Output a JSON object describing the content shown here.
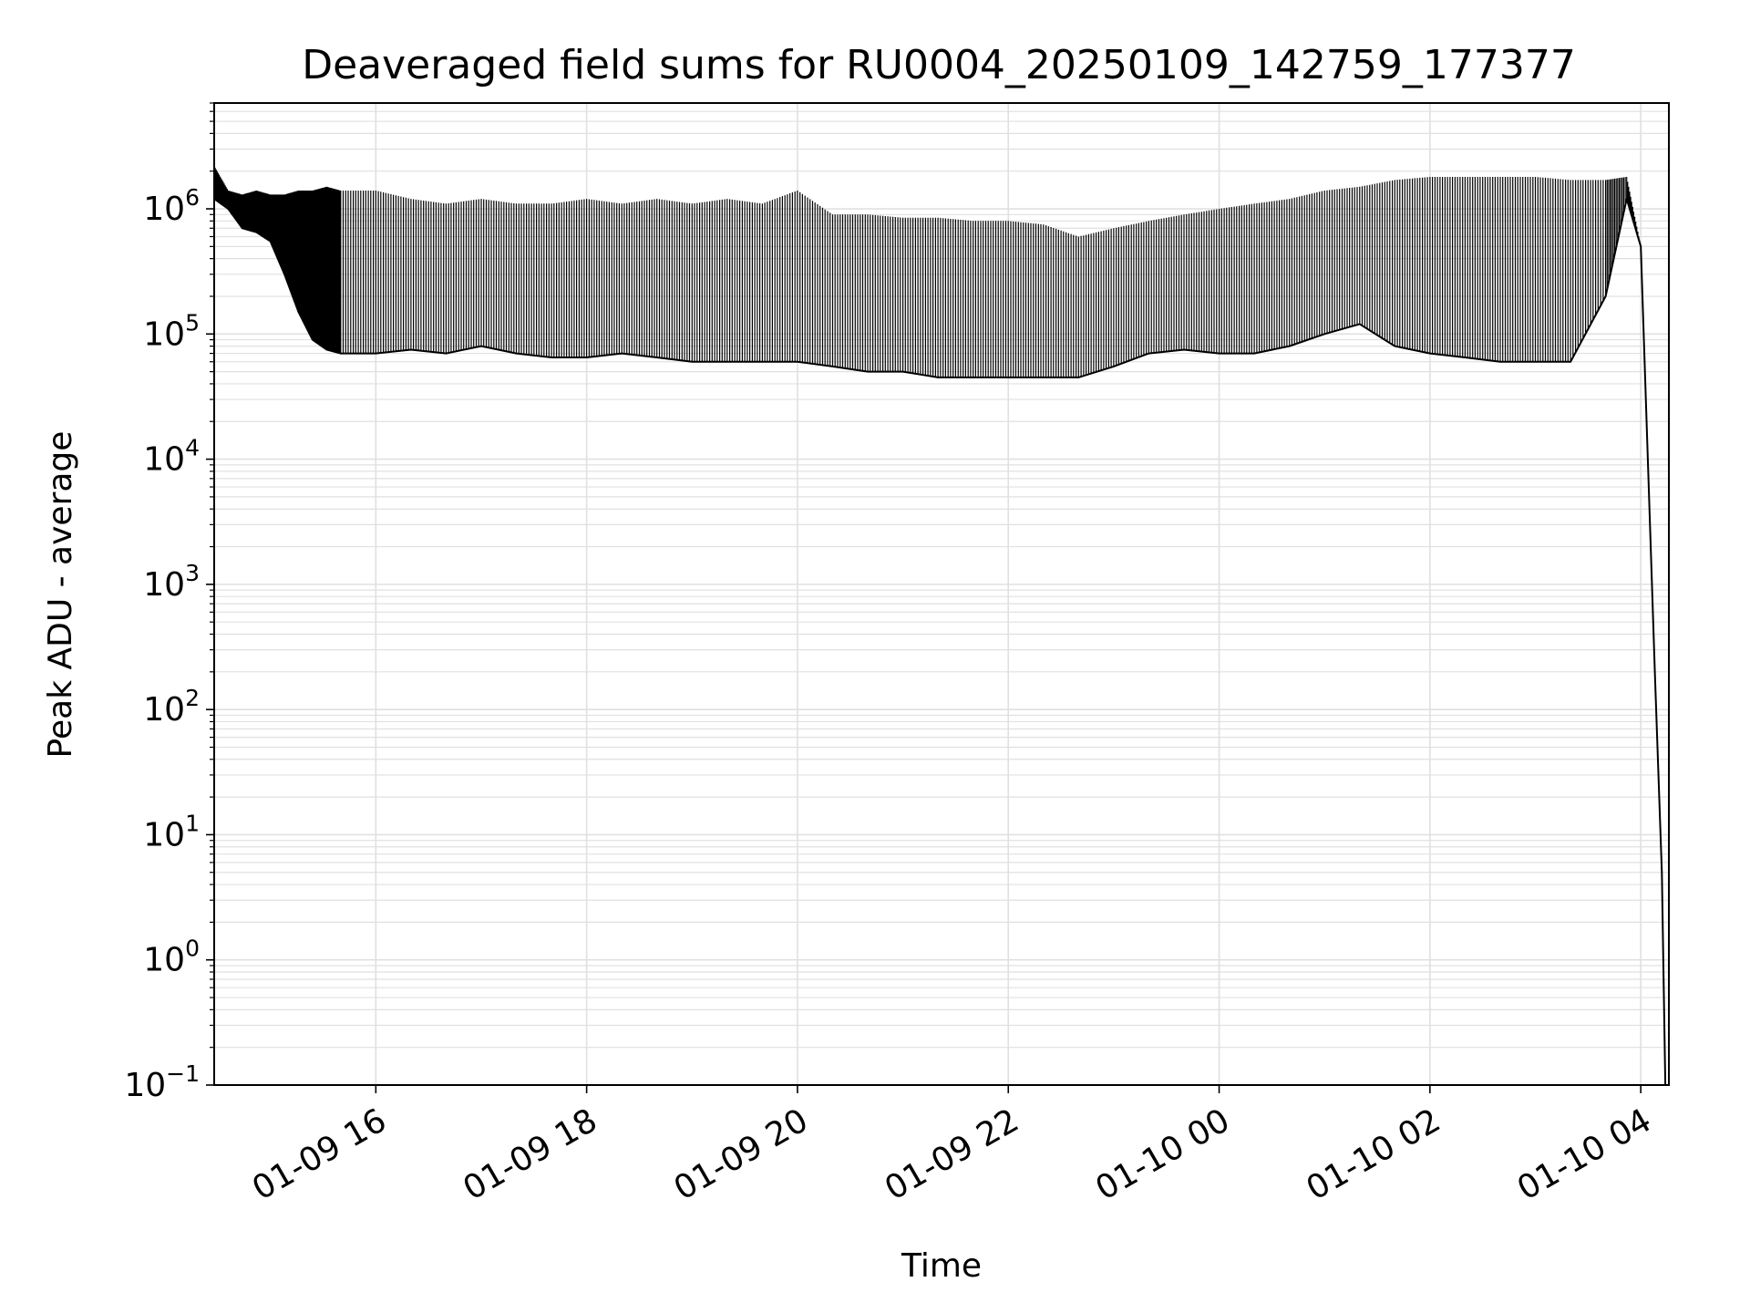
{
  "chart_data": {
    "type": "line",
    "title": "Deaveraged field sums for RU0004_20250109_142759_177377",
    "xlabel": "Time",
    "ylabel": "Peak ADU - average",
    "yscale": "log",
    "ylim": [
      0.1,
      7000000
    ],
    "xlim": [
      "2025-01-09 14:28",
      "2025-01-10 04:16"
    ],
    "grid": true,
    "legend": "none",
    "line_color": "#000000",
    "grid_color": "#e0e0e0",
    "x_ticks": [
      {
        "value": "2025-01-09 16:00",
        "label": "01-09 16"
      },
      {
        "value": "2025-01-09 18:00",
        "label": "01-09 18"
      },
      {
        "value": "2025-01-09 20:00",
        "label": "01-09 20"
      },
      {
        "value": "2025-01-09 22:00",
        "label": "01-09 22"
      },
      {
        "value": "2025-01-10 00:00",
        "label": "01-10 00"
      },
      {
        "value": "2025-01-10 02:00",
        "label": "01-10 02"
      },
      {
        "value": "2025-01-10 04:00",
        "label": "01-10 04"
      }
    ],
    "y_ticks": [
      {
        "value": 0.1,
        "base": "10",
        "exp": "−1"
      },
      {
        "value": 1,
        "base": "10",
        "exp": "0"
      },
      {
        "value": 10,
        "base": "10",
        "exp": "1"
      },
      {
        "value": 100,
        "base": "10",
        "exp": "2"
      },
      {
        "value": 1000,
        "base": "10",
        "exp": "3"
      },
      {
        "value": 10000,
        "base": "10",
        "exp": "4"
      },
      {
        "value": 100000,
        "base": "10",
        "exp": "5"
      },
      {
        "value": 1000000,
        "base": "10",
        "exp": "6"
      }
    ],
    "series": [
      {
        "values_note_removed": true,
        "x": [
          "2025-01-09 14:28",
          "2025-01-09 14:36",
          "2025-01-09 14:44",
          "2025-01-09 14:52",
          "2025-01-09 15:00",
          "2025-01-09 15:08",
          "2025-01-09 15:16",
          "2025-01-09 15:24",
          "2025-01-09 15:32",
          "2025-01-09 15:40",
          "2025-01-09 16:00",
          "2025-01-09 16:20",
          "2025-01-09 16:40",
          "2025-01-09 17:00",
          "2025-01-09 17:20",
          "2025-01-09 17:40",
          "2025-01-09 18:00",
          "2025-01-09 18:20",
          "2025-01-09 18:40",
          "2025-01-09 19:00",
          "2025-01-09 19:20",
          "2025-01-09 19:40",
          "2025-01-09 20:00",
          "2025-01-09 20:20",
          "2025-01-09 20:40",
          "2025-01-09 21:00",
          "2025-01-09 21:20",
          "2025-01-09 21:40",
          "2025-01-09 22:00",
          "2025-01-09 22:20",
          "2025-01-09 22:40",
          "2025-01-09 23:00",
          "2025-01-09 23:20",
          "2025-01-09 23:40",
          "2025-01-10 00:00",
          "2025-01-10 00:20",
          "2025-01-10 00:40",
          "2025-01-10 01:00",
          "2025-01-10 01:20",
          "2025-01-10 01:40",
          "2025-01-10 02:00",
          "2025-01-10 02:20",
          "2025-01-10 02:40",
          "2025-01-10 03:00",
          "2025-01-10 03:20",
          "2025-01-10 03:40",
          "2025-01-10 03:52",
          "2025-01-10 04:00",
          "2025-01-10 04:04",
          "2025-01-10 04:08",
          "2025-01-10 04:12",
          "2025-01-10 04:14"
        ],
        "y": [
          1200000,
          1000000,
          700000,
          650000,
          550000,
          300000,
          150000,
          90000,
          75000,
          70000,
          70000,
          75000,
          70000,
          80000,
          70000,
          65000,
          65000,
          70000,
          65000,
          60000,
          60000,
          60000,
          60000,
          55000,
          50000,
          50000,
          45000,
          45000,
          45000,
          45000,
          45000,
          55000,
          70000,
          75000,
          70000,
          70000,
          80000,
          100000,
          120000,
          80000,
          70000,
          65000,
          60000,
          60000,
          60000,
          200000,
          1200000,
          500000,
          10000,
          200,
          5,
          0.1
        ],
        "upper_envelope": [
          2200000,
          1400000,
          1300000,
          1400000,
          1300000,
          1300000,
          1400000,
          1400000,
          1500000,
          1400000,
          1400000,
          1200000,
          1100000,
          1200000,
          1100000,
          1100000,
          1200000,
          1100000,
          1200000,
          1100000,
          1200000,
          1100000,
          1400000,
          900000,
          900000,
          850000,
          850000,
          800000,
          800000,
          750000,
          600000,
          700000,
          800000,
          900000,
          1000000,
          1100000,
          1200000,
          1400000,
          1500000,
          1700000,
          1800000,
          1800000,
          1800000,
          1800000,
          1700000,
          1700000,
          1800000,
          500000,
          10000,
          200,
          5,
          0.1
        ]
      }
    ]
  }
}
